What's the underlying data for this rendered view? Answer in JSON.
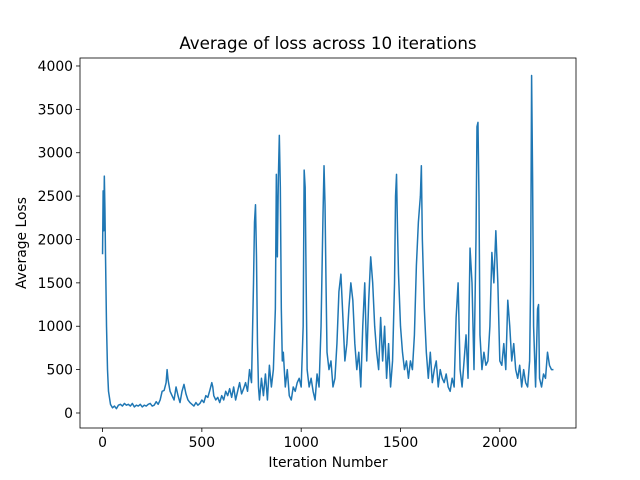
{
  "chart_data": {
    "type": "line",
    "title": "Average of loss across 10 iterations",
    "x_label": "Iteration Number",
    "y_label": "Average Loss",
    "xlim": [
      -113.5,
      2383.5
    ],
    "ylim": [
      -173,
      4092
    ],
    "xticks": [
      0,
      500,
      1000,
      1500,
      2000
    ],
    "yticks": [
      0,
      500,
      1000,
      1500,
      2000,
      2500,
      3000,
      3500,
      4000
    ],
    "series": [
      {
        "color": "#1f77b4",
        "x": [
          0,
          3,
          6,
          9,
          12,
          15,
          20,
          25,
          30,
          40,
          50,
          60,
          70,
          80,
          90,
          100,
          110,
          120,
          130,
          140,
          150,
          160,
          170,
          180,
          190,
          200,
          210,
          220,
          230,
          240,
          250,
          260,
          270,
          280,
          290,
          300,
          310,
          320,
          325,
          330,
          340,
          350,
          360,
          370,
          380,
          390,
          400,
          410,
          420,
          430,
          440,
          450,
          460,
          470,
          480,
          490,
          500,
          510,
          520,
          530,
          540,
          550,
          555,
          560,
          570,
          580,
          590,
          600,
          610,
          620,
          630,
          640,
          650,
          660,
          670,
          680,
          690,
          700,
          710,
          720,
          730,
          740,
          750,
          760,
          765,
          770,
          775,
          780,
          785,
          790,
          800,
          810,
          820,
          830,
          840,
          850,
          860,
          870,
          875,
          880,
          885,
          890,
          895,
          900,
          905,
          910,
          920,
          930,
          940,
          950,
          960,
          970,
          980,
          990,
          1000,
          1010,
          1015,
          1020,
          1025,
          1030,
          1040,
          1050,
          1060,
          1070,
          1080,
          1090,
          1100,
          1110,
          1115,
          1120,
          1125,
          1130,
          1140,
          1150,
          1160,
          1170,
          1180,
          1190,
          1200,
          1210,
          1220,
          1230,
          1240,
          1250,
          1260,
          1270,
          1280,
          1290,
          1300,
          1310,
          1320,
          1330,
          1340,
          1350,
          1360,
          1370,
          1380,
          1390,
          1400,
          1410,
          1420,
          1430,
          1440,
          1450,
          1460,
          1470,
          1475,
          1480,
          1485,
          1490,
          1500,
          1510,
          1520,
          1530,
          1540,
          1550,
          1560,
          1570,
          1580,
          1590,
          1600,
          1605,
          1610,
          1620,
          1630,
          1640,
          1650,
          1660,
          1670,
          1680,
          1690,
          1700,
          1710,
          1720,
          1730,
          1740,
          1750,
          1760,
          1770,
          1780,
          1790,
          1800,
          1810,
          1820,
          1830,
          1840,
          1850,
          1860,
          1870,
          1880,
          1885,
          1890,
          1895,
          1900,
          1910,
          1920,
          1930,
          1940,
          1950,
          1960,
          1970,
          1980,
          1990,
          2000,
          2010,
          2020,
          2030,
          2040,
          2050,
          2060,
          2070,
          2080,
          2090,
          2100,
          2110,
          2120,
          2130,
          2140,
          2150,
          2155,
          2160,
          2165,
          2170,
          2180,
          2190,
          2195,
          2200,
          2210,
          2220,
          2230,
          2240,
          2250,
          2260,
          2270
        ],
        "values": [
          1830,
          2560,
          2100,
          2730,
          2350,
          1800,
          1000,
          500,
          250,
          100,
          60,
          80,
          50,
          90,
          100,
          80,
          110,
          90,
          100,
          80,
          110,
          70,
          90,
          80,
          100,
          70,
          90,
          80,
          100,
          110,
          80,
          90,
          130,
          100,
          150,
          250,
          260,
          350,
          500,
          380,
          250,
          200,
          150,
          300,
          200,
          120,
          250,
          330,
          220,
          150,
          120,
          100,
          80,
          120,
          90,
          110,
          150,
          120,
          200,
          180,
          260,
          350,
          300,
          200,
          150,
          180,
          120,
          200,
          150,
          250,
          200,
          280,
          180,
          300,
          150,
          250,
          350,
          220,
          280,
          350,
          250,
          500,
          350,
          1500,
          2200,
          2400,
          1800,
          800,
          300,
          150,
          400,
          200,
          450,
          150,
          550,
          300,
          500,
          1200,
          2750,
          1800,
          2700,
          3200,
          2600,
          1200,
          600,
          700,
          300,
          500,
          200,
          150,
          300,
          250,
          350,
          400,
          300,
          1000,
          2800,
          2600,
          1500,
          500,
          300,
          400,
          250,
          150,
          450,
          300,
          1000,
          2300,
          2850,
          2400,
          1500,
          700,
          500,
          600,
          300,
          400,
          800,
          1400,
          1600,
          1100,
          600,
          800,
          1200,
          1500,
          1300,
          800,
          500,
          700,
          300,
          1000,
          1500,
          600,
          1300,
          1800,
          1500,
          1000,
          700,
          500,
          1100,
          600,
          1000,
          400,
          800,
          300,
          600,
          1500,
          2500,
          2750,
          2100,
          1600,
          1000,
          700,
          500,
          600,
          400,
          600,
          500,
          900,
          1700,
          2200,
          2500,
          2850,
          2000,
          1200,
          700,
          400,
          700,
          350,
          500,
          600,
          300,
          500,
          400,
          350,
          450,
          300,
          250,
          400,
          300,
          1100,
          1500,
          500,
          300,
          600,
          900,
          400,
          1900,
          1500,
          500,
          2000,
          3300,
          3350,
          2500,
          900,
          500,
          700,
          550,
          600,
          1000,
          1850,
          1500,
          2100,
          1500,
          600,
          550,
          800,
          500,
          1300,
          1000,
          600,
          800,
          500,
          400,
          550,
          300,
          500,
          350,
          300,
          600,
          1500,
          3890,
          2700,
          1000,
          300,
          1200,
          1250,
          400,
          300,
          450,
          400,
          700,
          550,
          500,
          500
        ]
      }
    ]
  }
}
